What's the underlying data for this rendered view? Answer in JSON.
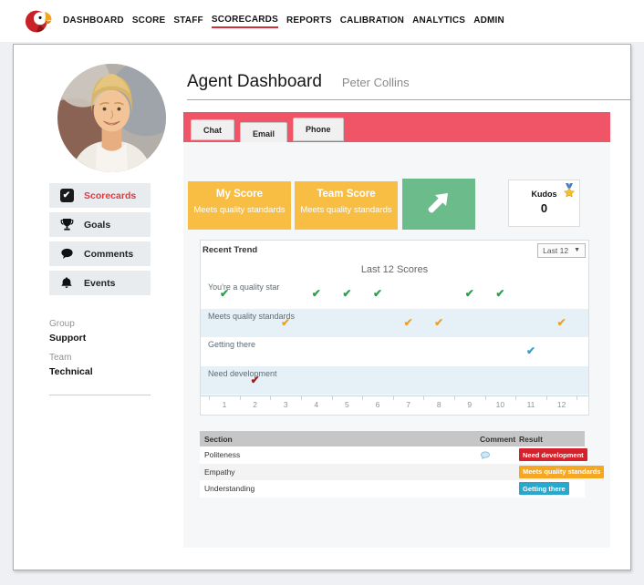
{
  "app": {
    "logo": "parrot-logo"
  },
  "nav": {
    "items": [
      "DASHBOARD",
      "SCORE",
      "STAFF",
      "SCORECARDS",
      "REPORTS",
      "CALIBRATION",
      "ANALYTICS",
      "ADMIN"
    ],
    "active": "SCORECARDS"
  },
  "header": {
    "title": "Agent Dashboard",
    "agent": "Peter Collins"
  },
  "channels": {
    "tabs": [
      "Chat",
      "Email",
      "Phone"
    ]
  },
  "sidebar": {
    "menu": [
      {
        "label": "Scorecards",
        "icon": "checkbox-icon",
        "active": true
      },
      {
        "label": "Goals",
        "icon": "trophy-icon",
        "active": false
      },
      {
        "label": "Comments",
        "icon": "comment-icon",
        "active": false
      },
      {
        "label": "Events",
        "icon": "bell-icon",
        "active": false
      }
    ],
    "group": {
      "label": "Group",
      "value": "Support"
    },
    "team": {
      "label": "Team",
      "value": "Technical"
    }
  },
  "score_cards": {
    "my_score": {
      "title": "My Score",
      "subtitle": "Meets quality standards",
      "bg": "#f8be44"
    },
    "team_score": {
      "title": "Team Score",
      "subtitle": "Meets quality standards",
      "bg": "#f8be44"
    },
    "trend_tile": {
      "icon": "arrow-up-right-icon",
      "bg": "#6bbb8b"
    },
    "kudos": {
      "title": "Kudos",
      "count": "0",
      "icon": "star-medal-icon"
    }
  },
  "trend_panel": {
    "title": "Recent Trend",
    "range_selected": "Last 12"
  },
  "chart_data": {
    "type": "scatter",
    "title": "Last 12 Scores",
    "marker": "check",
    "x_ticks": [
      1,
      2,
      3,
      4,
      5,
      6,
      7,
      8,
      9,
      10,
      11,
      12
    ],
    "rows": [
      {
        "label": "You're a quality star",
        "check_color": "#2d9e50",
        "striped": false
      },
      {
        "label": "Meets quality standards",
        "check_color": "#efa125",
        "striped": true
      },
      {
        "label": "Getting there",
        "check_color": "#2aa7cd",
        "striped": false
      },
      {
        "label": "Need development",
        "check_color": "#9a1c1c",
        "striped": true
      }
    ],
    "points": [
      {
        "x": 1,
        "rating": "You're a quality star"
      },
      {
        "x": 2,
        "rating": "Need development"
      },
      {
        "x": 3,
        "rating": "Meets quality standards"
      },
      {
        "x": 4,
        "rating": "You're a quality star"
      },
      {
        "x": 5,
        "rating": "You're a quality star"
      },
      {
        "x": 6,
        "rating": "You're a quality star"
      },
      {
        "x": 7,
        "rating": "Meets quality standards"
      },
      {
        "x": 8,
        "rating": "Meets quality standards"
      },
      {
        "x": 9,
        "rating": "You're a quality star"
      },
      {
        "x": 10,
        "rating": "You're a quality star"
      },
      {
        "x": 11,
        "rating": "Getting there"
      },
      {
        "x": 12,
        "rating": "Meets quality standards"
      }
    ],
    "stripe_color": "#e6f1f7",
    "legend_position": "none",
    "grid": false
  },
  "results_table": {
    "headers": [
      "Section",
      "Comment",
      "Result"
    ],
    "rows": [
      {
        "section": "Politeness",
        "comment": true,
        "result": "Need development",
        "result_bg": "#d4212c"
      },
      {
        "section": "Empathy",
        "comment": false,
        "result": "Meets quality standards",
        "result_bg": "#f5a724"
      },
      {
        "section": "Understanding",
        "comment": false,
        "result": "Getting there",
        "result_bg": "#2aa7cd"
      }
    ]
  },
  "colors": {
    "banner": "#ef5467",
    "nav_underline": "#d32f39",
    "active_menu_text": "#e2383f",
    "tile_yellow": "#f8be44",
    "tile_green": "#6bbb8b",
    "page_bg": "#eef0f3",
    "content_bg": "#f6f7f9",
    "table_header_bg": "#c6c6c6"
  }
}
